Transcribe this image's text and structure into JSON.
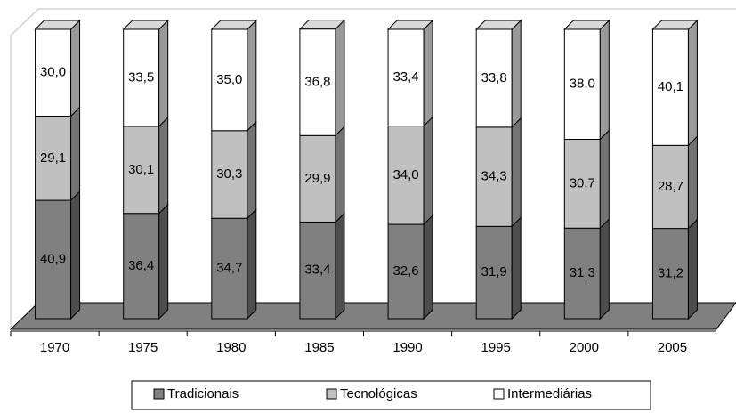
{
  "chart_data": {
    "type": "stacked-bar-3d",
    "categories": [
      "1970",
      "1975",
      "1980",
      "1985",
      "1990",
      "1995",
      "2000",
      "2005"
    ],
    "series": [
      {
        "name": "Tradicionais",
        "color": "#808080",
        "values": [
          40.9,
          36.4,
          34.7,
          33.4,
          32.6,
          31.9,
          31.3,
          31.2
        ],
        "value_labels": [
          "40,9",
          "36,4",
          "34,7",
          "33,4",
          "32,6",
          "31,9",
          "31,3",
          "31,2"
        ]
      },
      {
        "name": "Tecnológicas",
        "color": "#c0c0c0",
        "values": [
          29.1,
          30.1,
          30.3,
          29.9,
          34.0,
          34.3,
          30.7,
          28.7
        ],
        "value_labels": [
          "29,1",
          "30,1",
          "30,3",
          "29,9",
          "34,0",
          "34,3",
          "30,7",
          "28,7"
        ]
      },
      {
        "name": "Intermediárias",
        "color": "#ffffff",
        "values": [
          30.0,
          33.5,
          35.0,
          36.8,
          33.4,
          33.8,
          38.0,
          40.1
        ],
        "value_labels": [
          "30,0",
          "33,5",
          "35,0",
          "36,8",
          "33,4",
          "33,8",
          "38,0",
          "40,1"
        ]
      }
    ],
    "legend": "bottom"
  }
}
